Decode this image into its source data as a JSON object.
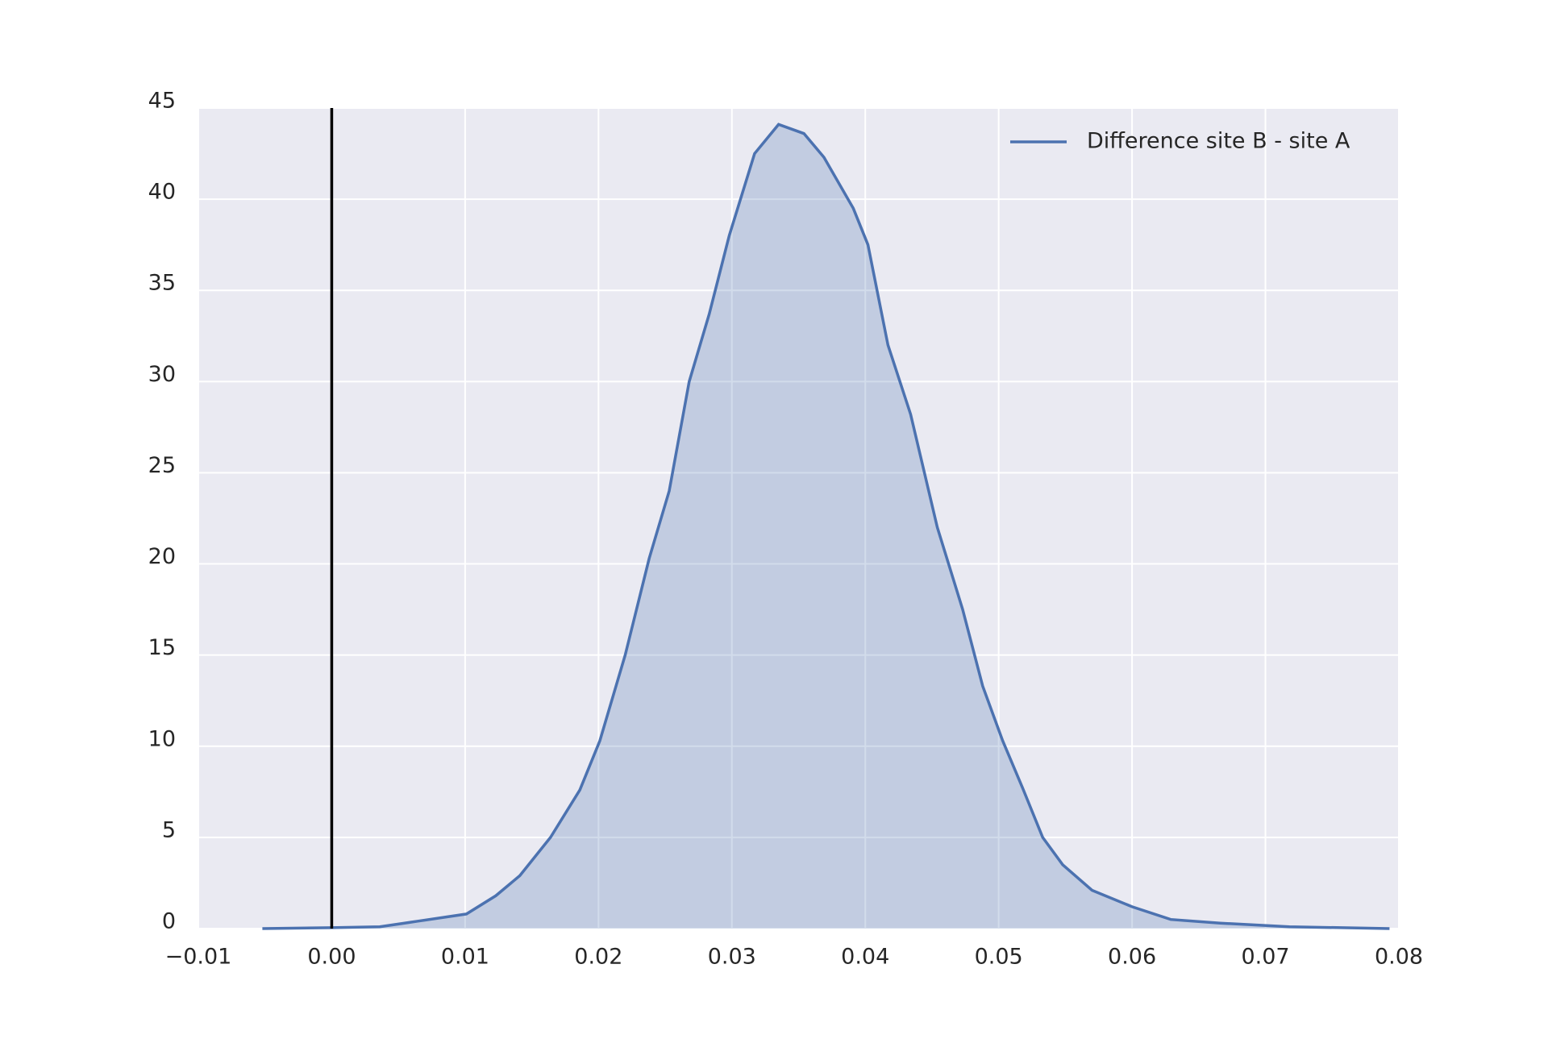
{
  "chart_data": {
    "type": "kde",
    "series": [
      {
        "name": "Difference site B - site A",
        "color": "#4c72b0",
        "x": [
          -0.0052,
          0.0,
          0.0036,
          0.0064,
          0.0101,
          0.0123,
          0.0141,
          0.0164,
          0.0186,
          0.0201,
          0.022,
          0.0238,
          0.0253,
          0.0268,
          0.0283,
          0.0298,
          0.0317,
          0.0335,
          0.0354,
          0.0369,
          0.0391,
          0.0402,
          0.0417,
          0.0434,
          0.0454,
          0.0473,
          0.0488,
          0.0503,
          0.0518,
          0.0533,
          0.0548,
          0.057,
          0.06,
          0.0629,
          0.0666,
          0.0718,
          0.0793
        ],
        "values": [
          0.0,
          0.05,
          0.1,
          0.4,
          0.8,
          1.8,
          2.9,
          5.0,
          7.6,
          10.3,
          15.0,
          20.3,
          24.0,
          30.0,
          33.7,
          38.0,
          42.5,
          44.1,
          43.6,
          42.3,
          39.5,
          37.5,
          32.0,
          28.2,
          22.0,
          17.5,
          13.3,
          10.3,
          7.7,
          5.0,
          3.5,
          2.1,
          1.2,
          0.5,
          0.3,
          0.1,
          0.0
        ]
      }
    ],
    "shade": true,
    "vline": {
      "x": 0,
      "color": "#000000"
    },
    "xlim": [
      -0.01,
      0.08
    ],
    "xticks": [
      {
        "value": -0.01,
        "label": "−0.01"
      },
      {
        "value": 0,
        "label": "0.00"
      },
      0.01,
      0.02,
      0.03,
      0.04,
      0.05,
      0.06,
      0.07,
      0.08
    ],
    "ylim": [
      0,
      45
    ],
    "yticks": [
      0,
      5,
      10,
      15,
      20,
      25,
      30,
      35,
      40,
      45
    ],
    "grid": true,
    "legend": "upper right"
  }
}
